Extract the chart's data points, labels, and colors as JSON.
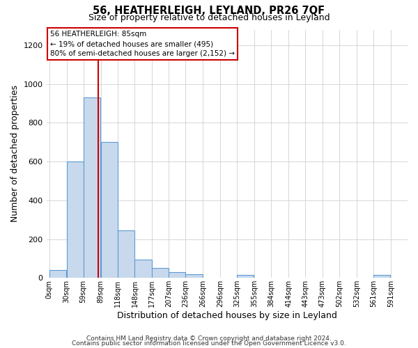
{
  "title1": "56, HEATHERLEIGH, LEYLAND, PR26 7QF",
  "title2": "Size of property relative to detached houses in Leyland",
  "xlabel": "Distribution of detached houses by size in Leyland",
  "ylabel": "Number of detached properties",
  "bar_left_edges": [
    0,
    30,
    59,
    89,
    118,
    148,
    177,
    207,
    236,
    266,
    296,
    325,
    355,
    384,
    414,
    443,
    473,
    502,
    532,
    561
  ],
  "bar_heights": [
    40,
    600,
    930,
    700,
    245,
    95,
    52,
    30,
    20,
    0,
    0,
    15,
    0,
    0,
    0,
    0,
    0,
    0,
    0,
    15
  ],
  "bin_width": 29,
  "x_tick_labels": [
    "0sqm",
    "30sqm",
    "59sqm",
    "89sqm",
    "118sqm",
    "148sqm",
    "177sqm",
    "207sqm",
    "236sqm",
    "266sqm",
    "296sqm",
    "325sqm",
    "355sqm",
    "384sqm",
    "414sqm",
    "443sqm",
    "473sqm",
    "502sqm",
    "532sqm",
    "561sqm",
    "591sqm"
  ],
  "x_tick_positions": [
    0,
    30,
    59,
    89,
    118,
    148,
    177,
    207,
    236,
    266,
    296,
    325,
    355,
    384,
    414,
    443,
    473,
    502,
    532,
    561,
    591
  ],
  "ylim": [
    0,
    1280
  ],
  "xlim": [
    -5,
    620
  ],
  "bar_color": "#c9d9ed",
  "bar_edge_color": "#5b9bd5",
  "grid_color": "#d0d0d0",
  "property_line_x": 85,
  "annotation_title": "56 HEATHERLEIGH: 85sqm",
  "annotation_line1": "← 19% of detached houses are smaller (495)",
  "annotation_line2": "80% of semi-detached houses are larger (2,152) →",
  "annotation_box_facecolor": "#ffffff",
  "annotation_box_edgecolor": "#cc0000",
  "red_line_color": "#cc0000",
  "footer1": "Contains HM Land Registry data © Crown copyright and database right 2024.",
  "footer2": "Contains public sector information licensed under the Open Government Licence v3.0."
}
